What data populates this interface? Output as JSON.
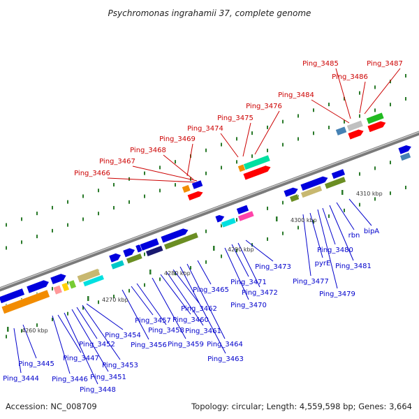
{
  "title": "Psychromonas ingrahamii 37, complete genome",
  "footer": {
    "accession": "Accession: NC_008709",
    "summary": "Topology: circular; Length: 4,559,598 bp; Genes: 3,664"
  },
  "scale_labels": [
    "4260 kbp",
    "4270 kbp",
    "4280 kbp",
    "4290 kbp",
    "4300 kbp",
    "4310 kbp"
  ],
  "colors": {
    "upper_label": "#cc0000",
    "lower_label": "#0000cc",
    "backbone": "#888888",
    "tick": "#2a7a2a"
  },
  "upper_genes": [
    "Ping_3466",
    "Ping_3467",
    "Ping_3468",
    "Ping_3469",
    "Ping_3474",
    "Ping_3475",
    "Ping_3476",
    "Ping_3484",
    "Ping_3485",
    "Ping_3486",
    "Ping_3487"
  ],
  "lower_genes": [
    "Ping_3444",
    "Ping_3445",
    "Ping_3446",
    "Ping_3447",
    "Ping_3448",
    "Ping_3451",
    "Ping_3452",
    "Ping_3453",
    "Ping_3454",
    "Ping_3456",
    "Ping_3457",
    "Ping_3458",
    "Ping_3459",
    "Ping_3460",
    "Ping_3461",
    "Ping_3462",
    "Ping_3463",
    "Ping_3464",
    "Ping_3465",
    "Ping_3470",
    "Ping_3471",
    "Ping_3472",
    "Ping_3473",
    "Ping_3477",
    "pyrE",
    "Ping_3479",
    "Ping_3480",
    "Ping_3481",
    "rbn",
    "bipA"
  ]
}
